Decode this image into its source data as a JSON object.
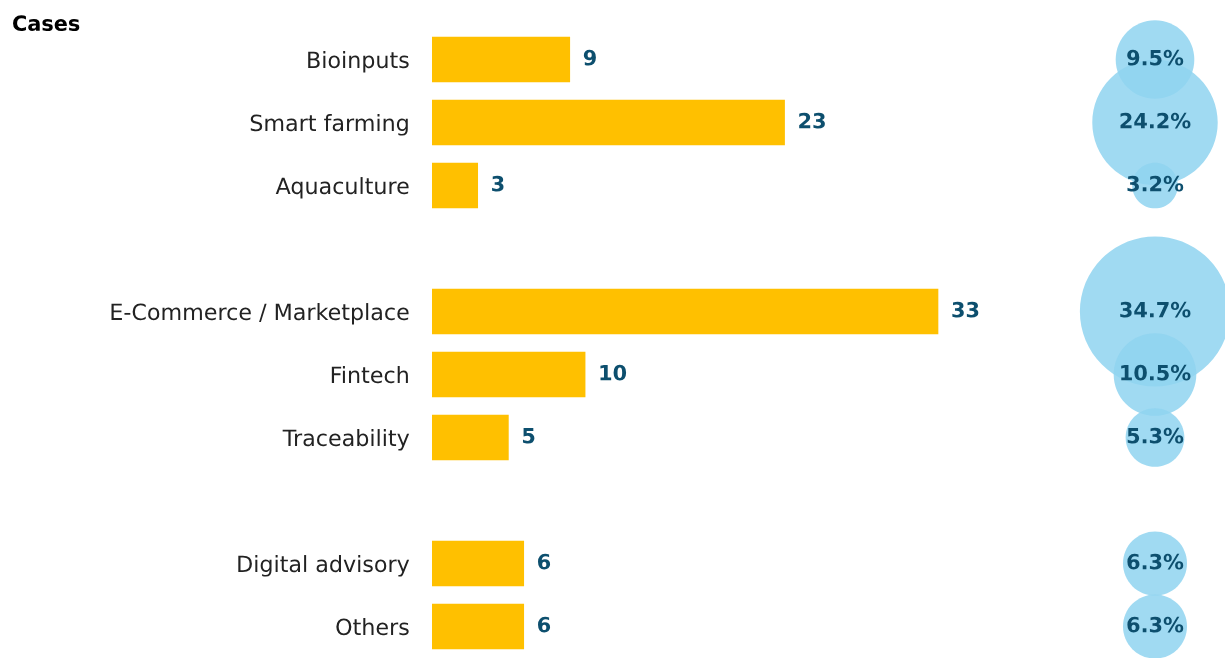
{
  "chart_data": [
    {
      "type": "bar",
      "orientation": "horizontal",
      "title": "Cases",
      "categories": [
        "Bioinputs",
        "Smart farming",
        "Aquaculture",
        null,
        "E-Commerce / Marketplace",
        "Fintech",
        "Traceability",
        null,
        "Digital advisory",
        "Others"
      ],
      "values": [
        9,
        23,
        3,
        null,
        33,
        10,
        5,
        null,
        6,
        6
      ],
      "color": "#ffc000",
      "data_labels": true,
      "grid": false,
      "legend": false
    },
    {
      "type": "other",
      "categories": [
        null,
        null,
        null,
        null,
        null,
        null,
        null,
        null,
        null,
        null
      ],
      "values": [
        9.5,
        24.2,
        3.2,
        null,
        34.7,
        10.5,
        5.3,
        null,
        6.3,
        6.3
      ],
      "value_labels": [
        "9.5%",
        "24.2%",
        "3.2%",
        null,
        "34.7%",
        "10.5%",
        "5.3%",
        null,
        "6.3%",
        "6.3%"
      ],
      "color": "#8fd3f0",
      "legend": false
    }
  ]
}
